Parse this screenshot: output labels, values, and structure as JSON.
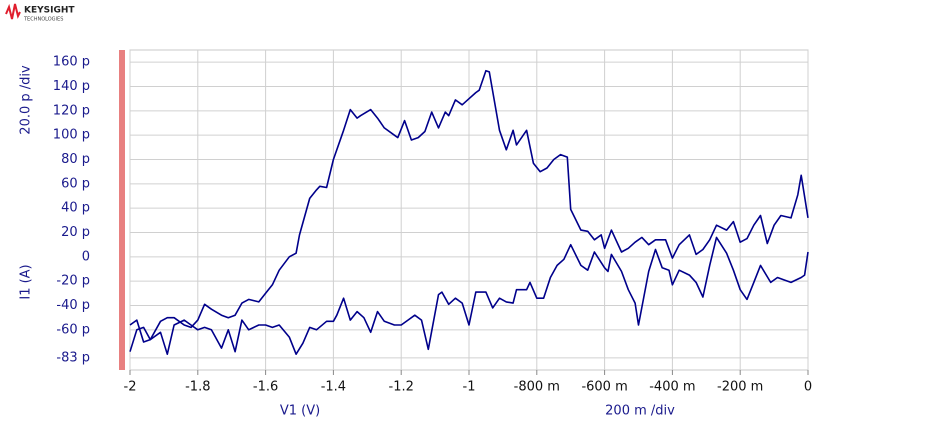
{
  "logo": {
    "name": "KEYSIGHT",
    "sub": "TECHNOLOGIES"
  },
  "chart_data": {
    "type": "line",
    "y_label": "I1 (A)",
    "y_div_label": "20.0 p /div",
    "x_label": "V1 (V)",
    "x_div_label": "200 m /div",
    "xlim": [
      -2,
      0
    ],
    "ylim": [
      -93,
      170
    ],
    "grid": true,
    "xticks": [
      -2,
      -1.8,
      -1.6,
      -1.4,
      -1.2,
      -1,
      {
        "value": -0.8,
        "label": "-800 m"
      },
      {
        "value": -0.6,
        "label": "-600 m"
      },
      {
        "value": -0.4,
        "label": "-400 m"
      },
      {
        "value": -0.2,
        "label": "-200 m"
      },
      0
    ],
    "yticks": [
      {
        "value": 160,
        "label": "160 p"
      },
      {
        "value": 140,
        "label": "140 p"
      },
      {
        "value": 120,
        "label": "120 p"
      },
      {
        "value": 100,
        "label": "100 p"
      },
      {
        "value": 80,
        "label": "80 p"
      },
      {
        "value": 60,
        "label": "60 p"
      },
      {
        "value": 40,
        "label": "40 p"
      },
      {
        "value": 20,
        "label": "20 p"
      },
      0,
      {
        "value": -20,
        "label": "-20 p"
      },
      {
        "value": -40,
        "label": "-40 p"
      },
      {
        "value": -60,
        "label": "-60 p"
      },
      {
        "value": -83,
        "label": "-83 p"
      }
    ],
    "series": [
      {
        "color": "#00008b",
        "x": [
          -2.0,
          -1.98,
          -1.96,
          -1.94,
          -1.91,
          -1.89,
          -1.87,
          -1.84,
          -1.82,
          -1.8,
          -1.78,
          -1.76,
          -1.73,
          -1.71,
          -1.69,
          -1.67,
          -1.65,
          -1.62,
          -1.6,
          -1.58,
          -1.56,
          -1.53,
          -1.51,
          -1.49,
          -1.47,
          -1.45,
          -1.42,
          -1.4,
          -1.39,
          -1.37,
          -1.35,
          -1.33,
          -1.31,
          -1.29,
          -1.27,
          -1.25,
          -1.22,
          -1.2,
          -1.18,
          -1.16,
          -1.14,
          -1.12,
          -1.09,
          -1.08,
          -1.06,
          -1.04,
          -1.02,
          -1.0,
          -0.98,
          -0.95,
          -0.93,
          -0.91,
          -0.89,
          -0.87,
          -0.86,
          -0.83,
          -0.82,
          -0.8,
          -0.78,
          -0.76,
          -0.74,
          -0.72,
          -0.7,
          -0.67,
          -0.65,
          -0.63,
          -0.6,
          -0.59,
          -0.58,
          -0.55,
          -0.53,
          -0.51,
          -0.5,
          -0.47,
          -0.45,
          -0.43,
          -0.41,
          -0.4,
          -0.38,
          -0.35,
          -0.33,
          -0.31,
          -0.29,
          -0.27,
          -0.24,
          -0.22,
          -0.2,
          -0.18,
          -0.16,
          -0.14,
          -0.11,
          -0.09,
          -0.07,
          -0.05,
          -0.02,
          -0.01,
          0.0
        ],
        "values": [
          -78,
          -60,
          -58,
          -68,
          -62,
          -80,
          -56,
          -52,
          -56,
          -60,
          -58,
          -60,
          -75,
          -60,
          -78,
          -52,
          -60,
          -56,
          -56,
          -58,
          -56,
          -66,
          -80,
          -71,
          -58,
          -60,
          -53,
          -53,
          -48,
          -34,
          -52,
          -45,
          -50,
          -62,
          -45,
          -53,
          -56,
          -56,
          -52,
          -48,
          -52,
          -76,
          -31,
          -29,
          -39,
          -34,
          -38,
          -56,
          -29,
          -29,
          -42,
          -34,
          -37,
          -38,
          -27,
          -27,
          -21,
          -34,
          -34,
          -17,
          -7,
          -2,
          10,
          -7,
          -11,
          4,
          -9,
          -12,
          2,
          -12,
          -27,
          -38,
          -56,
          -12,
          6,
          -9,
          -11,
          -23,
          -11,
          -15,
          -21,
          -33,
          -7,
          16,
          3,
          -11,
          -27,
          -35,
          -21,
          -7,
          -21,
          -17,
          -19,
          -21,
          -17,
          -15,
          4
        ]
      },
      {
        "color": "#00008b",
        "x": [
          -2.0,
          -1.98,
          -1.96,
          -1.94,
          -1.91,
          -1.89,
          -1.87,
          -1.84,
          -1.82,
          -1.8,
          -1.78,
          -1.76,
          -1.73,
          -1.71,
          -1.69,
          -1.67,
          -1.65,
          -1.62,
          -1.6,
          -1.58,
          -1.56,
          -1.53,
          -1.51,
          -1.5,
          -1.47,
          -1.45,
          -1.44,
          -1.42,
          -1.4,
          -1.37,
          -1.35,
          -1.33,
          -1.32,
          -1.29,
          -1.27,
          -1.25,
          -1.22,
          -1.21,
          -1.19,
          -1.17,
          -1.15,
          -1.13,
          -1.11,
          -1.09,
          -1.07,
          -1.06,
          -1.04,
          -1.02,
          -1.0,
          -0.98,
          -0.97,
          -0.95,
          -0.94,
          -0.91,
          -0.89,
          -0.87,
          -0.86,
          -0.83,
          -0.81,
          -0.79,
          -0.77,
          -0.75,
          -0.73,
          -0.71,
          -0.7,
          -0.67,
          -0.65,
          -0.63,
          -0.61,
          -0.6,
          -0.58,
          -0.55,
          -0.53,
          -0.51,
          -0.49,
          -0.47,
          -0.45,
          -0.42,
          -0.4,
          -0.38,
          -0.35,
          -0.33,
          -0.31,
          -0.29,
          -0.27,
          -0.24,
          -0.22,
          -0.2,
          -0.18,
          -0.16,
          -0.14,
          -0.12,
          -0.1,
          -0.08,
          -0.05,
          -0.03,
          -0.02,
          0.0
        ],
        "values": [
          -56,
          -52,
          -70,
          -68,
          -53,
          -50,
          -50,
          -56,
          -58,
          -52,
          -39,
          -43,
          -48,
          -50,
          -48,
          -38,
          -35,
          -37,
          -30,
          -23,
          -11,
          0,
          3,
          18,
          48,
          55,
          58,
          57,
          80,
          104,
          121,
          114,
          116,
          121,
          114,
          106,
          100,
          98,
          112,
          96,
          98,
          103,
          119,
          106,
          119,
          116,
          129,
          125,
          130,
          135,
          137,
          153,
          152,
          104,
          88,
          104,
          92,
          104,
          77,
          70,
          73,
          80,
          84,
          82,
          39,
          22,
          21,
          14,
          18,
          7,
          22,
          4,
          7,
          12,
          16,
          10,
          14,
          14,
          -1,
          10,
          18,
          2,
          6,
          14,
          26,
          22,
          29,
          12,
          15,
          26,
          34,
          11,
          26,
          34,
          32,
          51,
          67,
          32
        ]
      }
    ]
  }
}
